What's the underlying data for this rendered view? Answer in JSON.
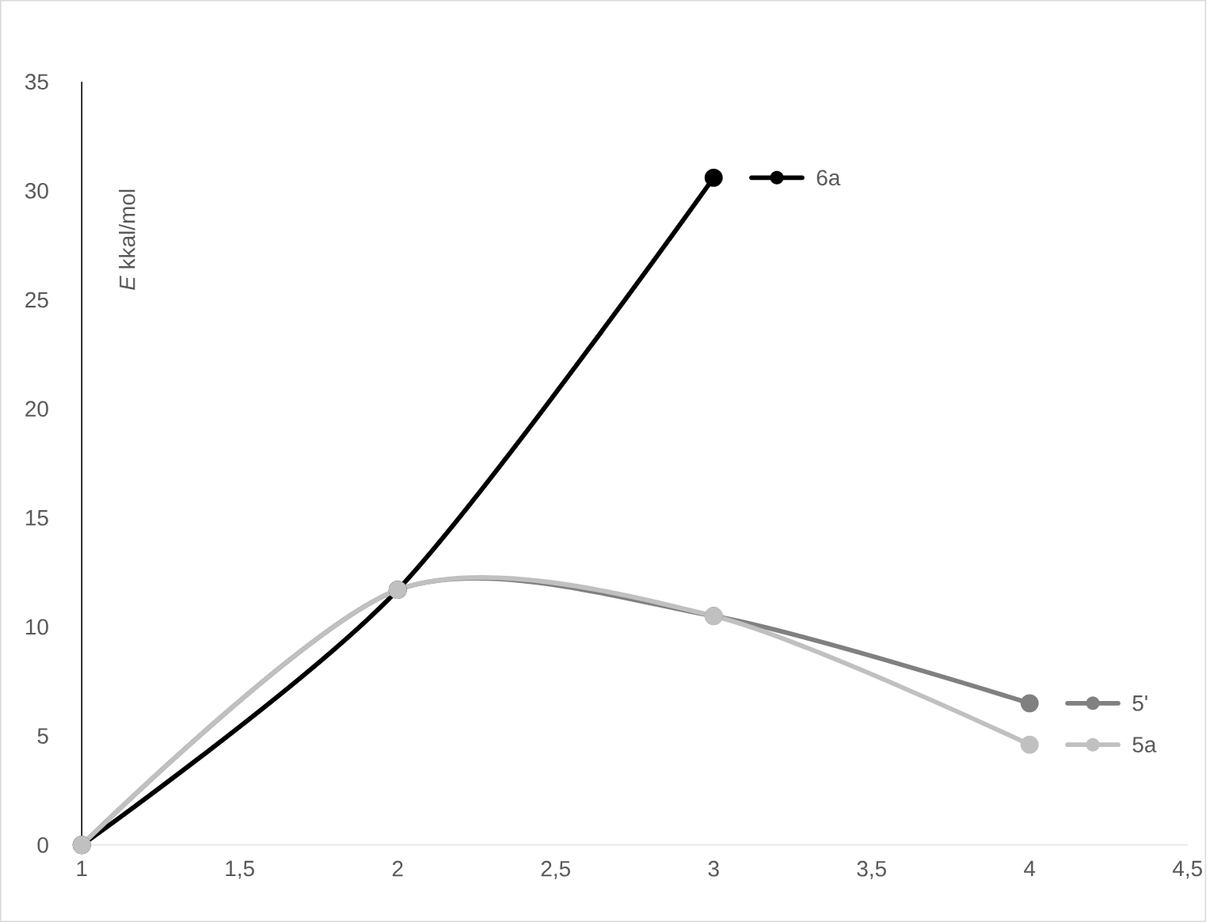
{
  "chart_data": {
    "type": "line",
    "ylabel": "*E* kkal/mol",
    "xlim": [
      1,
      4.5
    ],
    "ylim": [
      0,
      35
    ],
    "xticks": [
      1,
      {
        "value": 1.5,
        "label": "1,5"
      },
      2,
      {
        "value": 2.5,
        "label": "2,5"
      },
      3,
      {
        "value": 3.5,
        "label": "3,5"
      },
      4,
      {
        "value": 4.5,
        "label": "4,5"
      }
    ],
    "yticks": [
      0,
      5,
      10,
      15,
      20,
      25,
      30,
      35
    ],
    "marker": "circle",
    "grid": false,
    "legend": "right",
    "series": [
      {
        "name": "6a",
        "color": "#000000",
        "x": [
          1,
          2,
          3
        ],
        "values": [
          0,
          11.7,
          30.6
        ]
      },
      {
        "name": "5'",
        "color": "#808080",
        "x": [
          1,
          2,
          3,
          4
        ],
        "values": [
          0,
          11.7,
          10.5,
          6.5
        ]
      },
      {
        "name": "5a",
        "color": "#c0c0c0",
        "x": [
          1,
          2,
          3,
          4
        ],
        "values": [
          0,
          11.7,
          10.5,
          4.6
        ]
      }
    ]
  }
}
